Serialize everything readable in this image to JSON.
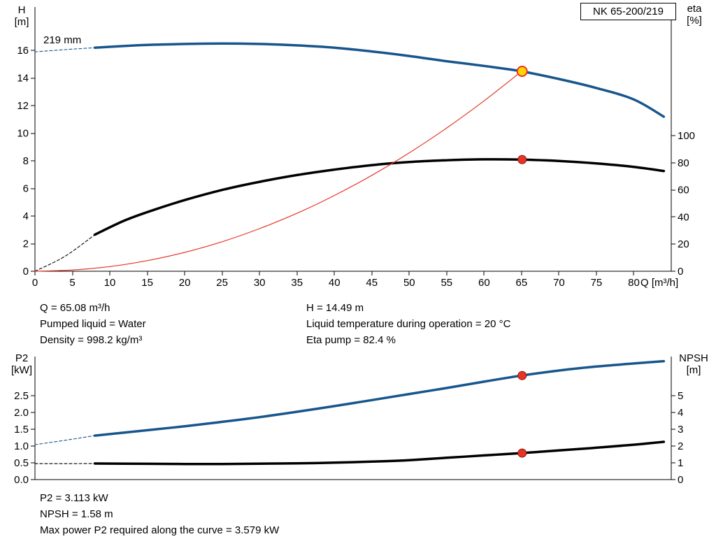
{
  "labels": {
    "model": "NK 65-200/219",
    "impeller": "219 mm",
    "h_axis": [
      "H",
      "[m]"
    ],
    "eta_axis": [
      "eta",
      "[%]"
    ],
    "q_axis": "Q [m³/h]",
    "p2_axis": [
      "P2",
      "[kW]"
    ],
    "npsh_axis": [
      "NPSH",
      "[m]"
    ]
  },
  "readout": {
    "q": "Q = 65.08 m³/h",
    "pumped_liquid": "Pumped liquid = Water",
    "density": "Density = 998.2 kg/m³",
    "h": "H = 14.49 m",
    "liquid_temp": "Liquid temperature during operation = 20 °C",
    "eta_pump": "Eta pump = 82.4 %",
    "p2": "P2 = 3.113 kW",
    "npsh": "NPSH = 1.58 m",
    "max_power": "Max power P2 required along the curve = 3.579 kW"
  },
  "colors": {
    "curve_blue": "#17568c",
    "curve_black": "#000000",
    "curve_red": "#e53528",
    "duty_yellow": "#ffd400",
    "axis": "#000000"
  },
  "chart_data": [
    {
      "name": "hq-eta-chart",
      "type": "line",
      "title": "NK 65-200/219",
      "xlabel": "Q [m³/h]",
      "ylabel_left": "H [m]",
      "ylabel_right": "eta [%]",
      "grid": false,
      "x_axis": {
        "min": 0,
        "max": 85,
        "ticks": [
          [
            0,
            "0"
          ],
          [
            5,
            "5"
          ],
          [
            10,
            "10"
          ],
          [
            15,
            "15"
          ],
          [
            20,
            "20"
          ],
          [
            25,
            "25"
          ],
          [
            30,
            "30"
          ],
          [
            35,
            "35"
          ],
          [
            40,
            "40"
          ],
          [
            45,
            "45"
          ],
          [
            50,
            "50"
          ],
          [
            55,
            "55"
          ],
          [
            60,
            "60"
          ],
          [
            65,
            "65"
          ],
          [
            70,
            "70"
          ],
          [
            75,
            "75"
          ],
          [
            80,
            "80"
          ]
        ]
      },
      "left_axis": {
        "min": 0,
        "max": 19.15,
        "ticks": [
          [
            0,
            "0"
          ],
          [
            2,
            "2"
          ],
          [
            4,
            "4"
          ],
          [
            6,
            "6"
          ],
          [
            8,
            "8"
          ],
          [
            10,
            "10"
          ],
          [
            12,
            "12"
          ],
          [
            14,
            "14"
          ],
          [
            16,
            "16"
          ]
        ]
      },
      "right_axis": {
        "min": 0,
        "max": 195,
        "ticks": [
          [
            0,
            "0"
          ],
          [
            20,
            "20"
          ],
          [
            40,
            "40"
          ],
          [
            60,
            "60"
          ],
          [
            80,
            "80"
          ],
          [
            100,
            "100"
          ]
        ]
      },
      "series": [
        {
          "name": "head-curve-dashed",
          "axis": "left",
          "color": "#17568c",
          "width": 1.1,
          "dash": "4 3",
          "points": [
            [
              0,
              15.9
            ],
            [
              4,
              16.06
            ],
            [
              8,
              16.2
            ]
          ]
        },
        {
          "name": "head-curve",
          "axis": "left",
          "color": "#17568c",
          "width": 3.5,
          "points": [
            [
              8,
              16.2
            ],
            [
              12,
              16.33
            ],
            [
              16,
              16.42
            ],
            [
              20,
              16.47
            ],
            [
              25,
              16.5
            ],
            [
              30,
              16.47
            ],
            [
              35,
              16.37
            ],
            [
              40,
              16.2
            ],
            [
              45,
              15.93
            ],
            [
              50,
              15.6
            ],
            [
              55,
              15.22
            ],
            [
              60,
              14.88
            ],
            [
              65,
              14.49
            ],
            [
              70,
              13.93
            ],
            [
              75,
              13.28
            ],
            [
              80,
              12.45
            ],
            [
              84,
              11.2
            ]
          ]
        },
        {
          "name": "eta-curve-dashed",
          "axis": "right",
          "color": "#000000",
          "width": 1.1,
          "dash": "4 3",
          "points": [
            [
              0,
              0
            ],
            [
              4,
              11
            ],
            [
              8,
              27
            ]
          ]
        },
        {
          "name": "eta-curve",
          "axis": "right",
          "color": "#000000",
          "width": 3.5,
          "points": [
            [
              8,
              27
            ],
            [
              12,
              37.5
            ],
            [
              16,
              45.5
            ],
            [
              20,
              52.5
            ],
            [
              25,
              60
            ],
            [
              30,
              66
            ],
            [
              35,
              71
            ],
            [
              40,
              75
            ],
            [
              45,
              78.3
            ],
            [
              50,
              80.6
            ],
            [
              55,
              81.9
            ],
            [
              60,
              82.6
            ],
            [
              65,
              82.4
            ],
            [
              70,
              81.4
            ],
            [
              75,
              79.6
            ],
            [
              80,
              77
            ],
            [
              84,
              74
            ]
          ]
        },
        {
          "name": "duty-parabola",
          "axis": "left",
          "color": "#e53528",
          "width": 1.2,
          "points": [
            [
              0,
              0
            ],
            [
              5,
              0.09
            ],
            [
              10,
              0.34
            ],
            [
              15,
              0.77
            ],
            [
              20,
              1.37
            ],
            [
              25,
              2.14
            ],
            [
              30,
              3.09
            ],
            [
              35,
              4.2
            ],
            [
              40,
              5.49
            ],
            [
              45,
              6.95
            ],
            [
              50,
              8.58
            ],
            [
              55,
              10.38
            ],
            [
              60,
              12.35
            ],
            [
              65,
              14.49
            ]
          ]
        }
      ],
      "markers": [
        {
          "name": "duty-point-qh",
          "x": 65.08,
          "y": 14.49,
          "axis": "left",
          "r": 7,
          "fill": "#ffd400",
          "stroke": "#e53528",
          "sw": 2
        },
        {
          "name": "duty-point-eta",
          "x": 65.08,
          "y": 82.4,
          "axis": "right",
          "r": 6,
          "fill": "#e53528",
          "stroke": "#8f150d",
          "sw": 1
        }
      ]
    },
    {
      "name": "p2-npsh-chart",
      "type": "line",
      "title": "",
      "xlabel": "",
      "ylabel_left": "P2 [kW]",
      "ylabel_right": "NPSH [m]",
      "grid": false,
      "x_axis": {
        "min": 0,
        "max": 85,
        "ticks": []
      },
      "left_axis": {
        "min": 0,
        "max": 3.667,
        "ticks": [
          [
            0,
            "0.0"
          ],
          [
            0.5,
            "0.5"
          ],
          [
            1,
            "1.0"
          ],
          [
            1.5,
            "1.5"
          ],
          [
            2,
            "2.0"
          ],
          [
            2.5,
            "2.5"
          ]
        ]
      },
      "right_axis": {
        "min": 0,
        "max": 7.333,
        "ticks": [
          [
            0,
            "0"
          ],
          [
            1,
            "1"
          ],
          [
            2,
            "2"
          ],
          [
            3,
            "3"
          ],
          [
            4,
            "4"
          ],
          [
            5,
            "5"
          ]
        ]
      },
      "series": [
        {
          "name": "p2-curve-dashed",
          "axis": "left",
          "color": "#17568c",
          "width": 1.1,
          "dash": "4 3",
          "points": [
            [
              0,
              1.04
            ],
            [
              4,
              1.17
            ],
            [
              8,
              1.31
            ]
          ]
        },
        {
          "name": "p2-curve",
          "axis": "left",
          "color": "#17568c",
          "width": 3.5,
          "points": [
            [
              8,
              1.31
            ],
            [
              15,
              1.47
            ],
            [
              20,
              1.59
            ],
            [
              25,
              1.72
            ],
            [
              30,
              1.86
            ],
            [
              35,
              2.02
            ],
            [
              40,
              2.19
            ],
            [
              45,
              2.37
            ],
            [
              50,
              2.55
            ],
            [
              55,
              2.73
            ],
            [
              60,
              2.92
            ],
            [
              65,
              3.1
            ],
            [
              70,
              3.25
            ],
            [
              75,
              3.37
            ],
            [
              80,
              3.46
            ],
            [
              84,
              3.53
            ]
          ]
        },
        {
          "name": "npsh-curve-dashed",
          "axis": "right",
          "color": "#000000",
          "width": 1.1,
          "dash": "4 3",
          "points": [
            [
              0,
              0.95
            ],
            [
              4,
              0.95
            ],
            [
              8,
              0.96
            ]
          ]
        },
        {
          "name": "npsh-curve",
          "axis": "right",
          "color": "#000000",
          "width": 3.5,
          "points": [
            [
              8,
              0.96
            ],
            [
              15,
              0.94
            ],
            [
              20,
              0.93
            ],
            [
              25,
              0.93
            ],
            [
              30,
              0.95
            ],
            [
              35,
              0.97
            ],
            [
              40,
              1.01
            ],
            [
              45,
              1.07
            ],
            [
              50,
              1.16
            ],
            [
              55,
              1.3
            ],
            [
              60,
              1.44
            ],
            [
              65,
              1.58
            ],
            [
              70,
              1.74
            ],
            [
              75,
              1.9
            ],
            [
              80,
              2.08
            ],
            [
              84,
              2.25
            ]
          ]
        }
      ],
      "markers": [
        {
          "name": "duty-point-p2",
          "x": 65.08,
          "y": 3.1,
          "axis": "left",
          "r": 6,
          "fill": "#e53528",
          "stroke": "#8f150d",
          "sw": 1
        },
        {
          "name": "duty-point-npsh",
          "x": 65.08,
          "y": 1.58,
          "axis": "right",
          "r": 6,
          "fill": "#e53528",
          "stroke": "#8f150d",
          "sw": 1
        }
      ]
    }
  ]
}
